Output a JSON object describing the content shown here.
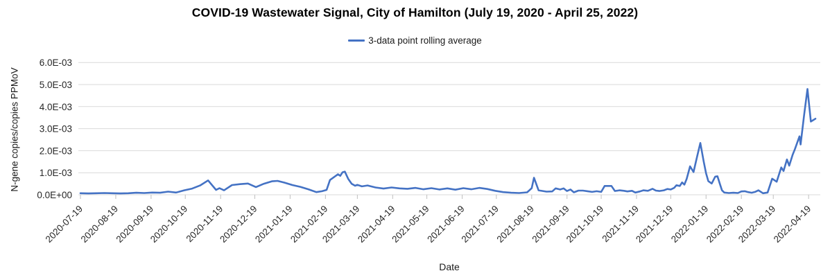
{
  "chart_data": {
    "type": "line",
    "title": "COVID-19 Wastewater Signal, City of Hamilton (July 19, 2020 - April 25, 2022)",
    "xlabel": "Date",
    "ylabel": "N-gene copies/copies PPMoV",
    "legend": [
      "3-data point rolling average"
    ],
    "legend_position": "top",
    "grid": "horizontal",
    "ylim": [
      0,
      0.006
    ],
    "y_tick_labels": [
      "0.0E+00",
      "1.0E-03",
      "2.0E-03",
      "3.0E-03",
      "4.0E-03",
      "5.0E-03",
      "6.0E-03"
    ],
    "x_tick_labels": [
      "2020-07-19",
      "2020-08-19",
      "2020-09-19",
      "2020-10-19",
      "2020-11-19",
      "2020-12-19",
      "2021-01-19",
      "2021-02-19",
      "2021-03-19",
      "2021-04-19",
      "2021-05-19",
      "2021-06-19",
      "2021-07-19",
      "2021-08-19",
      "2021-09-19",
      "2021-10-19",
      "2021-11-19",
      "2021-12-19",
      "2022-01-19",
      "2022-02-19",
      "2022-03-19",
      "2022-04-19"
    ],
    "x_range": [
      "2020-07-19",
      "2022-04-25"
    ],
    "value_scale_note": "point values are in units of 1.0E-03 N-gene copies/copies PPMoV",
    "colors": {
      "series": "#4472C4",
      "gridline": "#D9D9D9",
      "tick": "#BFBFBF",
      "axis_text": "#262626",
      "title_text": "#000000"
    },
    "series": [
      {
        "name": "3-data point rolling average",
        "color": "#4472C4",
        "points": [
          [
            "2020-07-19",
            0.07
          ],
          [
            "2020-07-26",
            0.06
          ],
          [
            "2020-08-02",
            0.07
          ],
          [
            "2020-08-09",
            0.08
          ],
          [
            "2020-08-16",
            0.07
          ],
          [
            "2020-08-23",
            0.06
          ],
          [
            "2020-08-30",
            0.07
          ],
          [
            "2020-09-06",
            0.09
          ],
          [
            "2020-09-13",
            0.08
          ],
          [
            "2020-09-20",
            0.1
          ],
          [
            "2020-09-27",
            0.09
          ],
          [
            "2020-10-04",
            0.14
          ],
          [
            "2020-10-11",
            0.1
          ],
          [
            "2020-10-18",
            0.2
          ],
          [
            "2020-10-25",
            0.28
          ],
          [
            "2020-11-01",
            0.42
          ],
          [
            "2020-11-08",
            0.65
          ],
          [
            "2020-11-15",
            0.22
          ],
          [
            "2020-11-18",
            0.3
          ],
          [
            "2020-11-22",
            0.2
          ],
          [
            "2020-11-29",
            0.44
          ],
          [
            "2020-12-06",
            0.48
          ],
          [
            "2020-12-13",
            0.51
          ],
          [
            "2020-12-20",
            0.35
          ],
          [
            "2020-12-27",
            0.5
          ],
          [
            "2021-01-03",
            0.61
          ],
          [
            "2021-01-08",
            0.63
          ],
          [
            "2021-01-14",
            0.55
          ],
          [
            "2021-01-21",
            0.44
          ],
          [
            "2021-01-28",
            0.36
          ],
          [
            "2021-02-04",
            0.25
          ],
          [
            "2021-02-11",
            0.12
          ],
          [
            "2021-02-16",
            0.16
          ],
          [
            "2021-02-20",
            0.22
          ],
          [
            "2021-02-23",
            0.67
          ],
          [
            "2021-02-26",
            0.78
          ],
          [
            "2021-03-02",
            0.93
          ],
          [
            "2021-03-04",
            0.86
          ],
          [
            "2021-03-06",
            1.02
          ],
          [
            "2021-03-08",
            1.05
          ],
          [
            "2021-03-11",
            0.72
          ],
          [
            "2021-03-14",
            0.5
          ],
          [
            "2021-03-17",
            0.41
          ],
          [
            "2021-03-19",
            0.45
          ],
          [
            "2021-03-23",
            0.38
          ],
          [
            "2021-03-28",
            0.42
          ],
          [
            "2021-04-04",
            0.33
          ],
          [
            "2021-04-11",
            0.28
          ],
          [
            "2021-04-18",
            0.33
          ],
          [
            "2021-04-25",
            0.29
          ],
          [
            "2021-05-02",
            0.27
          ],
          [
            "2021-05-09",
            0.31
          ],
          [
            "2021-05-16",
            0.25
          ],
          [
            "2021-05-23",
            0.3
          ],
          [
            "2021-05-30",
            0.24
          ],
          [
            "2021-06-06",
            0.29
          ],
          [
            "2021-06-13",
            0.23
          ],
          [
            "2021-06-20",
            0.3
          ],
          [
            "2021-06-27",
            0.25
          ],
          [
            "2021-07-04",
            0.31
          ],
          [
            "2021-07-11",
            0.26
          ],
          [
            "2021-07-18",
            0.18
          ],
          [
            "2021-07-25",
            0.12
          ],
          [
            "2021-08-01",
            0.09
          ],
          [
            "2021-08-08",
            0.08
          ],
          [
            "2021-08-15",
            0.11
          ],
          [
            "2021-08-19",
            0.3
          ],
          [
            "2021-08-21",
            0.77
          ],
          [
            "2021-08-25",
            0.2
          ],
          [
            "2021-09-01",
            0.14
          ],
          [
            "2021-09-06",
            0.15
          ],
          [
            "2021-09-09",
            0.29
          ],
          [
            "2021-09-13",
            0.24
          ],
          [
            "2021-09-16",
            0.29
          ],
          [
            "2021-09-19",
            0.17
          ],
          [
            "2021-09-22",
            0.24
          ],
          [
            "2021-09-25",
            0.11
          ],
          [
            "2021-09-29",
            0.19
          ],
          [
            "2021-10-03",
            0.19
          ],
          [
            "2021-10-07",
            0.16
          ],
          [
            "2021-10-11",
            0.13
          ],
          [
            "2021-10-15",
            0.16
          ],
          [
            "2021-10-19",
            0.13
          ],
          [
            "2021-10-22",
            0.4
          ],
          [
            "2021-10-28",
            0.4
          ],
          [
            "2021-10-31",
            0.17
          ],
          [
            "2021-11-04",
            0.2
          ],
          [
            "2021-11-08",
            0.18
          ],
          [
            "2021-11-11",
            0.15
          ],
          [
            "2021-11-15",
            0.18
          ],
          [
            "2021-11-18",
            0.1
          ],
          [
            "2021-11-22",
            0.15
          ],
          [
            "2021-11-25",
            0.2
          ],
          [
            "2021-11-29",
            0.18
          ],
          [
            "2021-12-03",
            0.27
          ],
          [
            "2021-12-06",
            0.19
          ],
          [
            "2021-12-09",
            0.17
          ],
          [
            "2021-12-13",
            0.2
          ],
          [
            "2021-12-16",
            0.26
          ],
          [
            "2021-12-19",
            0.24
          ],
          [
            "2021-12-22",
            0.31
          ],
          [
            "2021-12-24",
            0.43
          ],
          [
            "2021-12-27",
            0.4
          ],
          [
            "2021-12-29",
            0.56
          ],
          [
            "2021-12-31",
            0.46
          ],
          [
            "2022-01-02",
            0.72
          ],
          [
            "2022-01-05",
            1.29
          ],
          [
            "2022-01-08",
            1.03
          ],
          [
            "2022-01-11",
            1.7
          ],
          [
            "2022-01-14",
            2.35
          ],
          [
            "2022-01-17",
            1.5
          ],
          [
            "2022-01-19",
            0.98
          ],
          [
            "2022-01-21",
            0.62
          ],
          [
            "2022-01-24",
            0.51
          ],
          [
            "2022-01-27",
            0.82
          ],
          [
            "2022-01-29",
            0.84
          ],
          [
            "2022-01-31",
            0.51
          ],
          [
            "2022-02-02",
            0.2
          ],
          [
            "2022-02-04",
            0.1
          ],
          [
            "2022-02-08",
            0.08
          ],
          [
            "2022-02-12",
            0.09
          ],
          [
            "2022-02-16",
            0.08
          ],
          [
            "2022-02-19",
            0.15
          ],
          [
            "2022-02-22",
            0.16
          ],
          [
            "2022-02-25",
            0.12
          ],
          [
            "2022-02-28",
            0.09
          ],
          [
            "2022-03-03",
            0.13
          ],
          [
            "2022-03-06",
            0.2
          ],
          [
            "2022-03-10",
            0.07
          ],
          [
            "2022-03-14",
            0.1
          ],
          [
            "2022-03-18",
            0.73
          ],
          [
            "2022-03-22",
            0.59
          ],
          [
            "2022-03-26",
            1.24
          ],
          [
            "2022-03-28",
            1.08
          ],
          [
            "2022-03-31",
            1.6
          ],
          [
            "2022-04-02",
            1.32
          ],
          [
            "2022-04-05",
            1.81
          ],
          [
            "2022-04-07",
            2.07
          ],
          [
            "2022-04-11",
            2.65
          ],
          [
            "2022-04-12",
            2.28
          ],
          [
            "2022-04-15",
            3.6
          ],
          [
            "2022-04-18",
            4.8
          ],
          [
            "2022-04-21",
            3.32
          ],
          [
            "2022-04-25",
            3.45
          ]
        ]
      }
    ]
  }
}
